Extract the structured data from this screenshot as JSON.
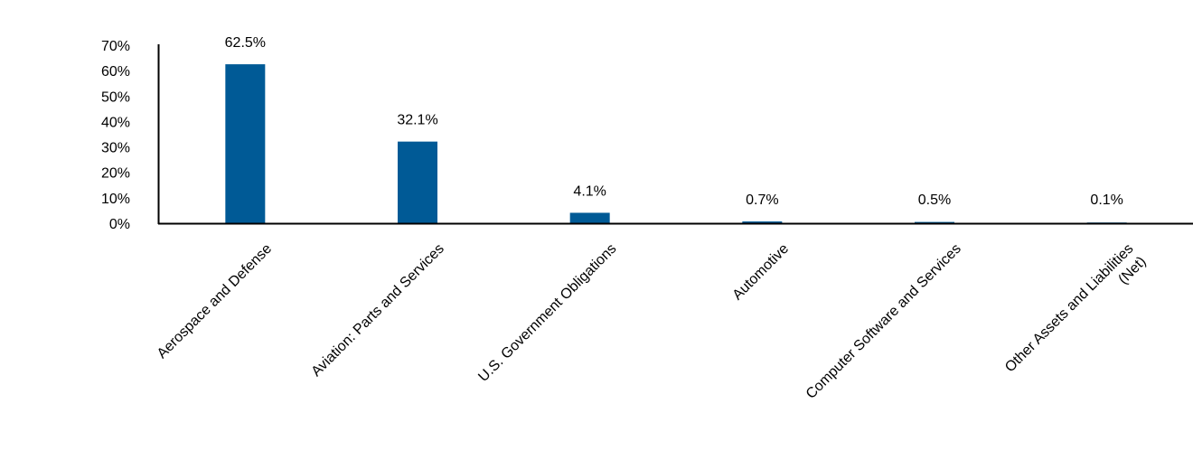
{
  "chart_data": {
    "type": "bar",
    "categories": [
      "Aerospace and Defense",
      "Aviation: Parts and Services",
      "U.S. Government Obligations",
      "Automotive",
      "Computer Software and Services",
      "Other Assets and Liabilities (Net)"
    ],
    "category_label_lines": [
      [
        "Aerospace and Defense"
      ],
      [
        "Aviation: Parts and Services"
      ],
      [
        "U.S. Government Obligations"
      ],
      [
        "Automotive"
      ],
      [
        "Computer Software and Services"
      ],
      [
        "Other Assets and Liabilities",
        "(Net)"
      ]
    ],
    "values": [
      62.5,
      32.1,
      4.1,
      0.7,
      0.5,
      0.1
    ],
    "data_labels": [
      "62.5%",
      "32.1%",
      "4.1%",
      "0.7%",
      "0.5%",
      "0.1%"
    ],
    "title": "",
    "xlabel": "",
    "ylabel": "",
    "ylim": [
      0,
      70
    ],
    "yticks": [
      0,
      10,
      20,
      30,
      40,
      50,
      60,
      70
    ],
    "ytick_labels": [
      "0%",
      "10%",
      "20%",
      "30%",
      "40%",
      "50%",
      "60%",
      "70%"
    ],
    "bar_color": "#005A96",
    "grid": false,
    "legend": "none"
  }
}
